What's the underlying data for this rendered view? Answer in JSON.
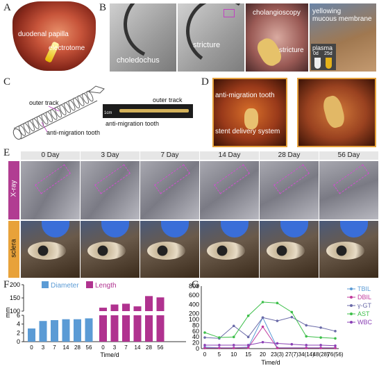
{
  "panels": {
    "A": {
      "letter": "A",
      "label_papilla": "duodenal papilla",
      "label_electrotome": "electrotome"
    },
    "B": {
      "letter": "B",
      "label_choledochus": "choledochus",
      "label_stricture1": "stricture",
      "label_cholangioscopy": "cholangioscopy",
      "label_stricture2": "stricture",
      "label_yellowing": "yellowing\nmucous membrane",
      "label_plasma": "plasma",
      "tube_0d": "0d",
      "tube_25d": "25d"
    },
    "C": {
      "letter": "C",
      "label_outer": "outer track",
      "label_tooth": "anti-migration tooth",
      "label_outer2": "outer track",
      "label_tooth2": "anti-migration tooth",
      "scale": "1cm"
    },
    "D": {
      "letter": "D",
      "label_tooth": "anti-migration tooth",
      "label_system": "stent delivery system"
    },
    "E": {
      "letter": "E",
      "days": [
        "0 Day",
        "3 Day",
        "7 Day",
        "14 Day",
        "28 Day",
        "56 Day"
      ],
      "row_xray": "X-ray",
      "row_sclera": "sclera"
    },
    "F": {
      "letter": "F"
    },
    "G": {
      "letter": "G"
    }
  },
  "chart_data": [
    {
      "type": "bar",
      "panel": "F",
      "ylabel": "mm",
      "xlabel": "Time/d",
      "categories": [
        "0",
        "3",
        "7",
        "14",
        "28",
        "56"
      ],
      "yticks_lower": [
        0,
        2,
        4,
        6
      ],
      "yticks_upper": [
        100,
        150,
        200
      ],
      "series": [
        {
          "name": "Diameter",
          "color": "#5b9bd5",
          "values": [
            3.0,
            4.7,
            4.9,
            5.1,
            5.1,
            5.3
          ]
        },
        {
          "name": "Length",
          "color": "#b0328f",
          "values": [
            113,
            125,
            128,
            118,
            157,
            152
          ]
        }
      ]
    },
    {
      "type": "line",
      "panel": "G",
      "xlabel": "Time/d",
      "categories": [
        "0",
        "5",
        "10",
        "15",
        "20",
        "23(3)",
        "27(7)",
        "34(14)",
        "48(28)",
        "76(56)"
      ],
      "yticks_lower": [
        0,
        20,
        40,
        60,
        80,
        100
      ],
      "yticks_upper": [
        200,
        400,
        600,
        800
      ],
      "series": [
        {
          "name": "TBIL",
          "color": "#5b9bd5",
          "values": [
            5,
            3,
            3,
            5,
            110,
            3,
            null,
            3,
            3,
            3
          ]
        },
        {
          "name": "DBIL",
          "color": "#c0399d",
          "values": [
            2,
            2,
            2,
            3,
            75,
            2,
            null,
            2,
            2,
            2
          ]
        },
        {
          "name": "γ-GT",
          "color": "#6a6aa8",
          "values": [
            38,
            35,
            78,
            40,
            110,
            95,
            120,
            80,
            72,
            60
          ]
        },
        {
          "name": "AST",
          "color": "#3dbf4a",
          "values": [
            55,
            38,
            40,
            150,
            450,
            430,
            230,
            42,
            38,
            35
          ]
        },
        {
          "name": "WBC",
          "color": "#8a3fb5",
          "values": [
            12,
            12,
            12,
            12,
            22,
            18,
            15,
            12,
            12,
            10
          ]
        }
      ]
    }
  ]
}
